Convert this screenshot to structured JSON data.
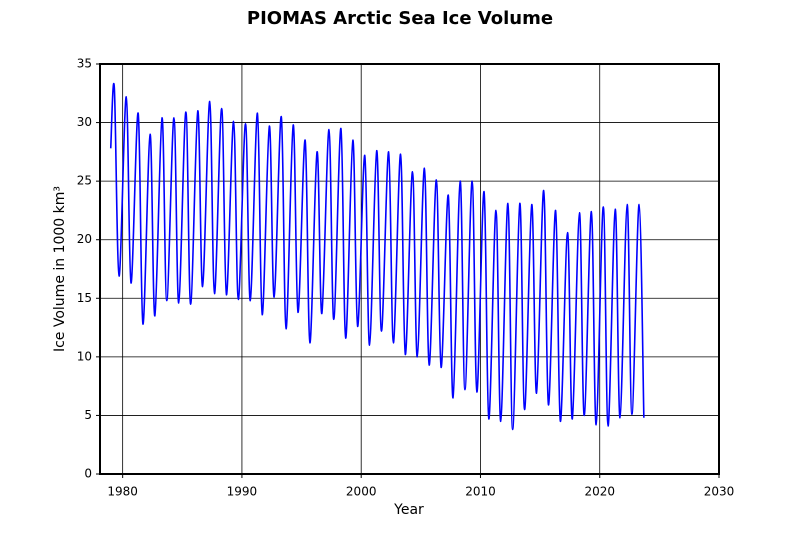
{
  "chart_data": {
    "type": "line",
    "title": "PIOMAS Arctic Sea Ice Volume",
    "x_label": "Year",
    "y_label": "Ice Volume in 1000 km³",
    "xlim": [
      1978.1,
      2030
    ],
    "xticks": [
      1980,
      1990,
      2000,
      2010,
      2020,
      2030
    ],
    "ylim": [
      0,
      35
    ],
    "yticks": [
      0,
      5,
      10,
      15,
      20,
      25,
      30,
      35
    ],
    "grid": true,
    "x": [
      1979,
      1979.3,
      1979.7,
      1980.3,
      1980.7,
      1981.3,
      1981.7,
      1982.3,
      1982.7,
      1983.3,
      1983.7,
      1984.3,
      1984.7,
      1985.3,
      1985.7,
      1986.3,
      1986.7,
      1987.3,
      1987.7,
      1988.3,
      1988.7,
      1989.3,
      1989.7,
      1990.3,
      1990.7,
      1991.3,
      1991.7,
      1992.3,
      1992.7,
      1993.3,
      1993.7,
      1994.3,
      1994.7,
      1995.3,
      1995.7,
      1996.3,
      1996.7,
      1997.3,
      1997.7,
      1998.3,
      1998.7,
      1999.3,
      1999.7,
      2000.3,
      2000.7,
      2001.3,
      2001.7,
      2002.3,
      2002.7,
      2003.3,
      2003.7,
      2004.3,
      2004.7,
      2005.3,
      2005.7,
      2006.3,
      2006.7,
      2007.3,
      2007.7,
      2008.3,
      2008.7,
      2009.3,
      2009.7,
      2010.3,
      2010.7,
      2011.3,
      2011.7,
      2012.3,
      2012.7,
      2013.3,
      2013.7,
      2014.3,
      2014.7,
      2015.3,
      2015.7,
      2016.3,
      2016.7,
      2017.3,
      2017.7,
      2018.3,
      2018.7,
      2019.3,
      2019.7,
      2020.3,
      2020.7,
      2021.3,
      2021.7,
      2022.3,
      2022.7,
      2023.3,
      2023.7
    ],
    "series": [
      {
        "color": "#0000ff",
        "values": [
          27.8,
          33.0,
          16.9,
          32.2,
          16.3,
          30.8,
          12.8,
          29.0,
          13.5,
          30.4,
          14.8,
          30.4,
          14.6,
          30.9,
          14.5,
          31.0,
          16.0,
          31.8,
          15.4,
          31.2,
          15.3,
          30.1,
          14.9,
          29.9,
          14.8,
          30.8,
          13.6,
          29.7,
          15.1,
          30.5,
          12.4,
          29.8,
          13.8,
          28.5,
          11.2,
          27.5,
          13.7,
          29.4,
          13.2,
          29.5,
          11.6,
          28.5,
          12.6,
          27.2,
          11.0,
          27.6,
          12.2,
          27.5,
          11.2,
          27.3,
          10.2,
          25.8,
          10.0,
          26.1,
          9.3,
          25.1,
          9.1,
          23.8,
          6.5,
          25.0,
          7.2,
          25.0,
          7.0,
          24.1,
          4.7,
          22.5,
          4.5,
          23.1,
          3.8,
          23.1,
          5.5,
          23.0,
          6.9,
          24.2,
          5.9,
          22.5,
          4.5,
          20.6,
          4.7,
          22.3,
          5.0,
          22.4,
          4.2,
          22.8,
          4.1,
          22.6,
          4.8,
          23.0,
          5.1,
          23.0,
          4.8
        ]
      }
    ]
  }
}
